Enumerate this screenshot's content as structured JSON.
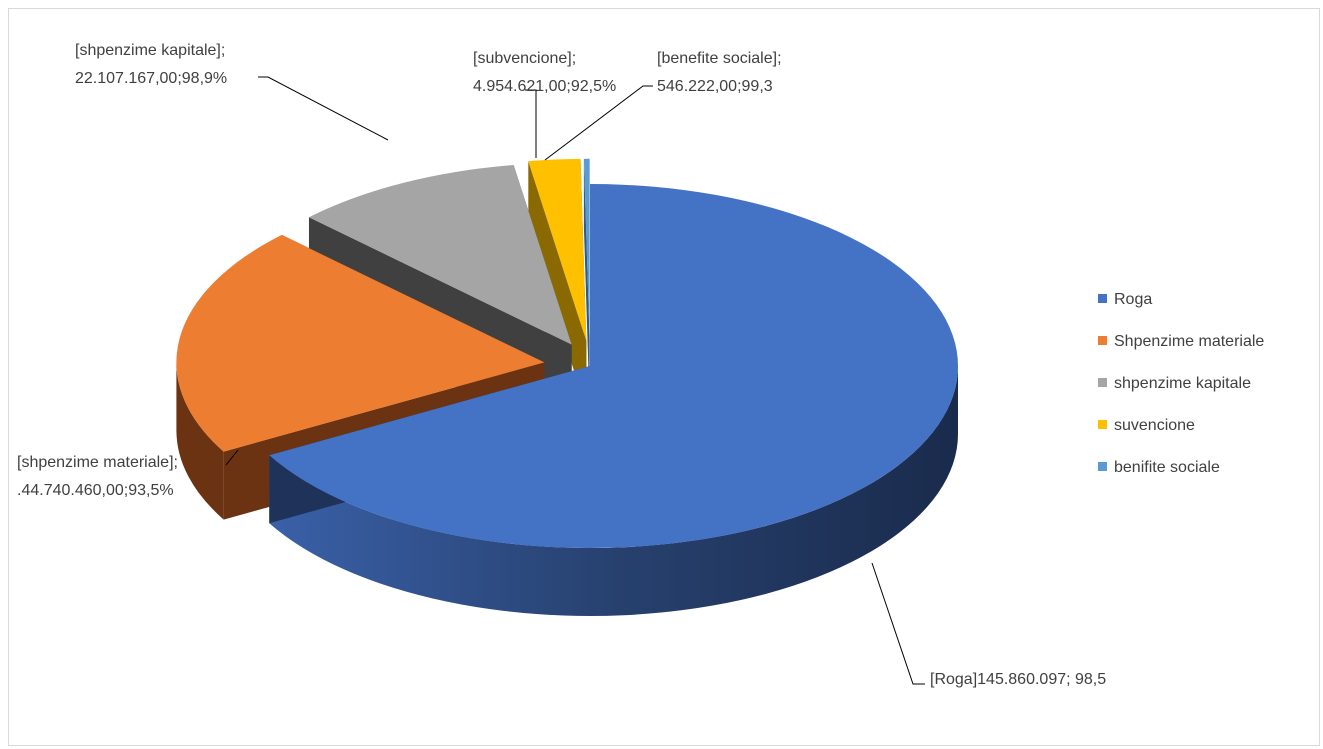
{
  "chart_data": {
    "type": "pie",
    "style": "3d-exploded",
    "categories": [
      "Roga",
      "Shpenzime materiale",
      "shpenzime kapitale",
      "suvencione",
      "benifite sociale"
    ],
    "values": [
      145860097,
      44740460,
      22107167,
      4954621,
      546222
    ],
    "colors": [
      "#4472c4",
      "#ed7d31",
      "#a5a5a5",
      "#ffc000",
      "#5b9bd5"
    ],
    "legend_position": "right",
    "data_labels": [
      {
        "line1": "[Roga]145.860.097; 98,5",
        "line2": ""
      },
      {
        "line1": "[shpenzime materiale];",
        "line2": ".44.740.460,00;93,5%"
      },
      {
        "line1": "[shpenzime kapitale];",
        "line2": "22.107.167,00;98,9%"
      },
      {
        "line1": "[subvencione];",
        "line2": "4.954.621,00;92,5%"
      },
      {
        "line1": "[benefite sociale];",
        "line2": "546.222,00;99,3"
      }
    ]
  }
}
